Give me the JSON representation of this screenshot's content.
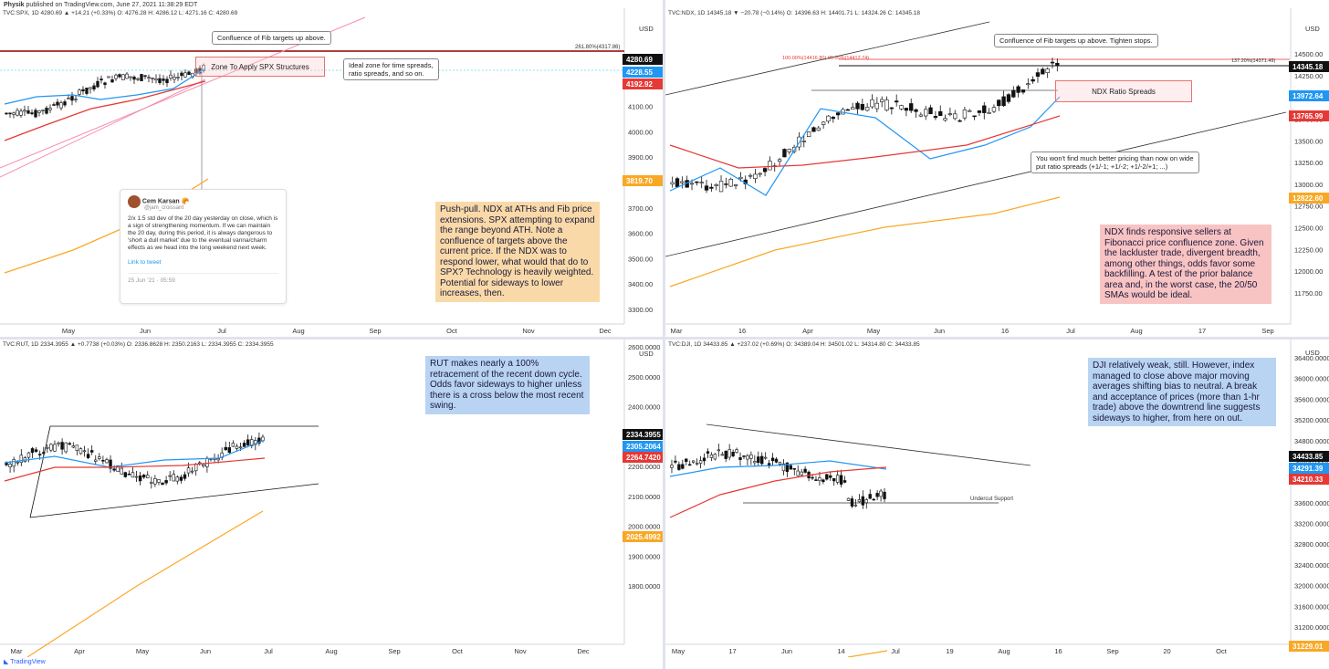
{
  "header": {
    "author": "Physik",
    "published": "published on TradingView.com, June 27, 2021 11:38:29 EDT"
  },
  "footer": {
    "brand": "TradingView"
  },
  "colors": {
    "up": "#26a69a",
    "down": "#ef5350",
    "sma20": "#2196f3",
    "sma50": "#e53935",
    "sma200": "#f9a825",
    "candle": "#111111"
  },
  "panels": [
    {
      "id": "spx",
      "symbol": "TVC:SPX, 1D",
      "ohlc": "4280.69 ▲ +14.21 (+0.33%)  O: 4276.28  H: 4286.12  L: 4271.16  C: 4280.69",
      "currency": "USD",
      "yticks": [
        "4300.00",
        "4200.00",
        "4100.00",
        "4000.00",
        "3900.00",
        "3800.00",
        "3700.00",
        "3600.00",
        "3500.00",
        "3400.00",
        "3300.00"
      ],
      "xticks": [
        "May",
        "Jun",
        "Jul",
        "Aug",
        "Sep",
        "Oct",
        "Nov",
        "Dec"
      ],
      "badges": [
        {
          "text": "4280.69",
          "color": "#111111"
        },
        {
          "text": "4228.55",
          "color": "#2196f3"
        },
        {
          "text": "4192.92",
          "color": "#e53935"
        },
        {
          "text": "3819.70",
          "color": "#f9a825"
        }
      ],
      "fib_label": "261.80%(4317.86)",
      "callouts": [
        "Confluence of Fib targets up above.",
        "Ideal zone for time spreads,\nratio spreads, and so on."
      ],
      "zone_label": "Zone To Apply SPX Structures",
      "note": "Push-pull. NDX at ATHs and Fib price extensions. SPX attempting to expand the range beyond ATH. Note a confluence of targets above the current price. If the NDX was to respond lower, what would that do to SPX? Technology is heavily weighted. Potential for sideways to lower increases, then.",
      "tweet": {
        "name": "Cem Karsan 🥐",
        "handle": "@jam_croissant",
        "body": "2/x 1.5 std dev of the 20 day yesterday on close, which is a sign of strengthening momentum. If we can maintain the 20 day, during this period,  it is always dangerous to 'short a dull market' due to the eventual vanna/charm effects as we head into the long weekend next week.",
        "link": "Link to tweet",
        "date": "25 Jun '21 · 05:59"
      }
    },
    {
      "id": "ndx",
      "symbol": "TVC:NDX, 1D",
      "ohlc": "14345.18 ▼ −20.78 (−0.14%)  O: 14396.63  H: 14401.71  L: 14324.26  C: 14345.18",
      "currency": "USD",
      "yticks": [
        "14500.00",
        "14250.00",
        "14000.00",
        "13750.00",
        "13500.00",
        "13250.00",
        "13000.00",
        "12750.00",
        "12500.00",
        "12250.00",
        "12000.00",
        "11750.00"
      ],
      "xticks": [
        "Mar",
        "16",
        "Apr",
        "May",
        "Jun",
        "16",
        "Jul",
        "Aug",
        "17",
        "Sep"
      ],
      "badges": [
        {
          "text": "14345.18",
          "color": "#111111"
        },
        {
          "text": "13972.64",
          "color": "#2196f3"
        },
        {
          "text": "13765.99",
          "color": "#e53935"
        },
        {
          "text": "12822.60",
          "color": "#f9a825"
        }
      ],
      "fib_label": "100.00%(14416.80)  95.00%(14412.74)",
      "fib_label_right": "137.20%(14371.49)",
      "callouts": [
        "Confluence of Fib targets up above. Tighten stops.",
        "You won't find much better pricing than now on wide\nput ratio spreads (+1/-1; +1/-2; +1/-2/+1; ...)"
      ],
      "zone_label": "NDX Ratio Spreads",
      "note": "NDX finds responsive sellers at Fibonacci price confluence zone. Given the lackluster trade, divergent breadth, among other things, odds favor some backfilling. A test of the prior balance area and, in the worst case, the 20/50 SMAs would be ideal."
    },
    {
      "id": "rut",
      "symbol": "TVC:RUT, 1D",
      "ohlc": "2334.3955 ▲ +0.7738 (+0.03%)  O: 2336.8628  H: 2350.2163  L: 2334.3955  C: 2334.3955",
      "currency": "USD",
      "yticks": [
        "2600.0000",
        "2500.0000",
        "2400.0000",
        "2300.0000",
        "2200.0000",
        "2100.0000",
        "2000.0000",
        "1900.0000",
        "1800.0000"
      ],
      "xticks": [
        "Mar",
        "Apr",
        "May",
        "Jun",
        "Jul",
        "Aug",
        "Sep",
        "Oct",
        "Nov",
        "Dec"
      ],
      "badges": [
        {
          "text": "2334.3955",
          "color": "#111111"
        },
        {
          "text": "2305.2064",
          "color": "#2196f3"
        },
        {
          "text": "2264.7420",
          "color": "#e53935"
        },
        {
          "text": "2025.4992",
          "color": "#f9a825"
        }
      ],
      "note": "RUT makes nearly a 100% retracement of the recent down cycle. Odds favor sideways to higher unless there is a cross below the most recent swing."
    },
    {
      "id": "dji",
      "symbol": "TVC:DJI, 1D",
      "ohlc": "34433.85 ▲ +237.02 (+0.69%)  O: 34389.04  H: 34501.02  L: 34314.80  C: 34433.85",
      "currency": "USD",
      "yticks": [
        "36400.0000",
        "36000.0000",
        "35600.0000",
        "35200.0000",
        "34800.0000",
        "34400.0000",
        "34000.0000",
        "33600.0000",
        "33200.0000",
        "32800.0000",
        "32400.0000",
        "32000.0000",
        "31600.0000",
        "31200.0000"
      ],
      "xticks": [
        "May",
        "17",
        "Jun",
        "14",
        "Jul",
        "19",
        "Aug",
        "16",
        "Sep",
        "20",
        "Oct"
      ],
      "badges": [
        {
          "text": "34433.85",
          "color": "#111111"
        },
        {
          "text": "34291.39",
          "color": "#2196f3"
        },
        {
          "text": "34210.33",
          "color": "#e53935"
        },
        {
          "text": "31229.01",
          "color": "#f9a825"
        }
      ],
      "support_label": "Undercut Support",
      "note": "DJI relatively weak, still. However, index managed to close above major moving averages shifting bias to neutral. A break and acceptance of prices (more than 1-hr trade) above the downtrend line suggests sideways to higher, from here on out."
    }
  ]
}
